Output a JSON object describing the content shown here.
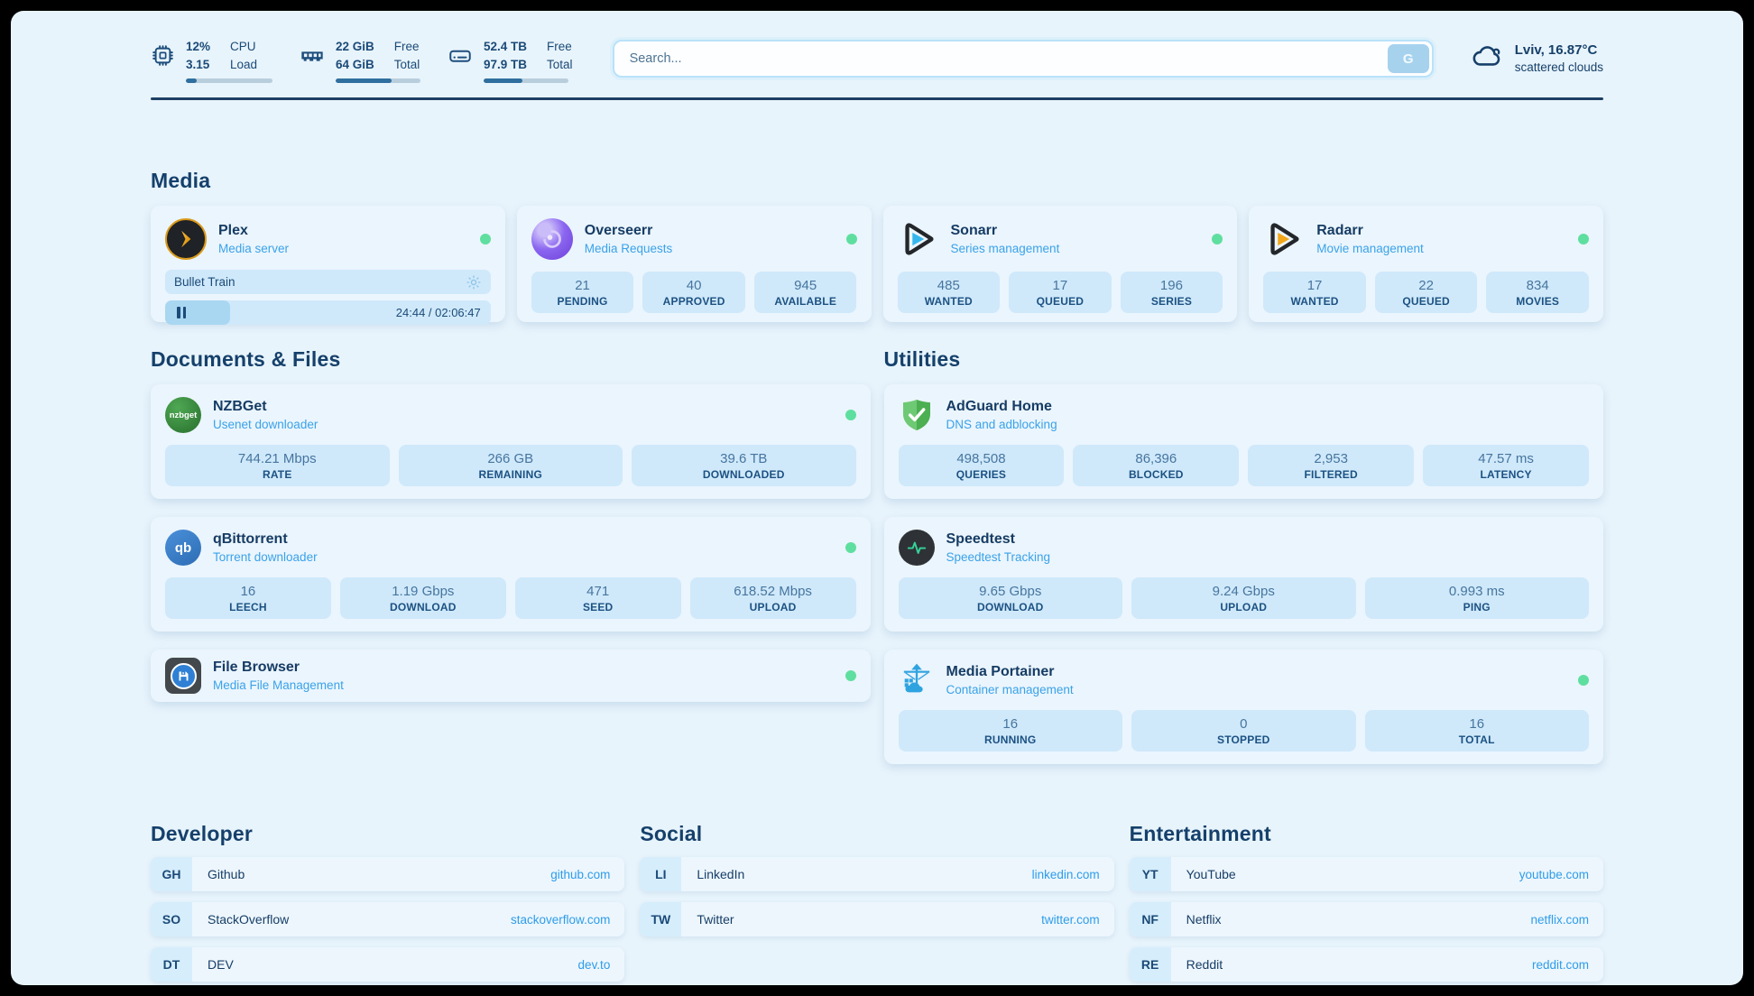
{
  "theme": {
    "page_bg": "#e8f4fc",
    "card_bg": "#ebf5fd",
    "stat_bg": "#cfe9fb",
    "navy_text": "#16406a",
    "subtitle_blue": "#3aa2e9",
    "link_blue": "#2e9ce9",
    "status_green": "#5fdf9f",
    "progress_fill": "#2f6f9f"
  },
  "topbar": {
    "cpu": {
      "value1": "12%",
      "value2": "3.15",
      "label1": "CPU",
      "label2": "Load",
      "progress": 12
    },
    "ram": {
      "value1": "22 GiB",
      "value2": "64 GiB",
      "label1": "Free",
      "label2": "Total",
      "progress": 66
    },
    "disk": {
      "value1": "52.4 TB",
      "value2": "97.9 TB",
      "label1": "Free",
      "label2": "Total",
      "progress": 46
    },
    "search": {
      "placeholder": "Search...",
      "button_label": "G"
    },
    "weather": {
      "location": "Lviv, 16.87°C",
      "condition": "scattered clouds"
    }
  },
  "media": {
    "title": "Media",
    "plex": {
      "name": "Plex",
      "desc": "Media server",
      "now_playing": "Bullet Train",
      "time": "24:44 / 02:06:47",
      "progress": 20
    },
    "overseerr": {
      "name": "Overseerr",
      "desc": "Media Requests",
      "stats": [
        {
          "value": "21",
          "label": "PENDING"
        },
        {
          "value": "40",
          "label": "APPROVED"
        },
        {
          "value": "945",
          "label": "AVAILABLE"
        }
      ]
    },
    "sonarr": {
      "name": "Sonarr",
      "desc": "Series management",
      "stats": [
        {
          "value": "485",
          "label": "WANTED"
        },
        {
          "value": "17",
          "label": "QUEUED"
        },
        {
          "value": "196",
          "label": "SERIES"
        }
      ]
    },
    "radarr": {
      "name": "Radarr",
      "desc": "Movie management",
      "stats": [
        {
          "value": "17",
          "label": "WANTED"
        },
        {
          "value": "22",
          "label": "QUEUED"
        },
        {
          "value": "834",
          "label": "MOVIES"
        }
      ]
    }
  },
  "documents": {
    "title": "Documents & Files",
    "nzbget": {
      "name": "NZBGet",
      "desc": "Usenet downloader",
      "icon_text": "nzbget",
      "stats": [
        {
          "value": "744.21 Mbps",
          "label": "RATE"
        },
        {
          "value": "266 GB",
          "label": "REMAINING"
        },
        {
          "value": "39.6 TB",
          "label": "DOWNLOADED"
        }
      ]
    },
    "qbittorrent": {
      "name": "qBittorrent",
      "desc": "Torrent downloader",
      "icon_text": "qb",
      "stats": [
        {
          "value": "16",
          "label": "LEECH"
        },
        {
          "value": "1.19 Gbps",
          "label": "DOWNLOAD"
        },
        {
          "value": "471",
          "label": "SEED"
        },
        {
          "value": "618.52 Mbps",
          "label": "UPLOAD"
        }
      ]
    },
    "filebrowser": {
      "name": "File Browser",
      "desc": "Media File Management"
    }
  },
  "utilities": {
    "title": "Utilities",
    "adguard": {
      "name": "AdGuard Home",
      "desc": "DNS and adblocking",
      "stats": [
        {
          "value": "498,508",
          "label": "QUERIES"
        },
        {
          "value": "86,396",
          "label": "BLOCKED"
        },
        {
          "value": "2,953",
          "label": "FILTERED"
        },
        {
          "value": "47.57 ms",
          "label": "LATENCY"
        }
      ]
    },
    "speedtest": {
      "name": "Speedtest",
      "desc": "Speedtest Tracking",
      "stats": [
        {
          "value": "9.65 Gbps",
          "label": "DOWNLOAD"
        },
        {
          "value": "9.24 Gbps",
          "label": "UPLOAD"
        },
        {
          "value": "0.993 ms",
          "label": "PING"
        }
      ]
    },
    "portainer": {
      "name": "Media Portainer",
      "desc": "Container management",
      "stats": [
        {
          "value": "16",
          "label": "RUNNING"
        },
        {
          "value": "0",
          "label": "STOPPED"
        },
        {
          "value": "16",
          "label": "TOTAL"
        }
      ]
    }
  },
  "links": {
    "developer": {
      "title": "Developer",
      "items": [
        {
          "badge": "GH",
          "name": "Github",
          "url": "github.com"
        },
        {
          "badge": "SO",
          "name": "StackOverflow",
          "url": "stackoverflow.com"
        },
        {
          "badge": "DT",
          "name": "DEV",
          "url": "dev.to"
        }
      ]
    },
    "social": {
      "title": "Social",
      "items": [
        {
          "badge": "LI",
          "name": "LinkedIn",
          "url": "linkedin.com"
        },
        {
          "badge": "TW",
          "name": "Twitter",
          "url": "twitter.com"
        }
      ]
    },
    "entertainment": {
      "title": "Entertainment",
      "items": [
        {
          "badge": "YT",
          "name": "YouTube",
          "url": "youtube.com"
        },
        {
          "badge": "NF",
          "name": "Netflix",
          "url": "netflix.com"
        },
        {
          "badge": "RE",
          "name": "Reddit",
          "url": "reddit.com"
        }
      ]
    }
  }
}
